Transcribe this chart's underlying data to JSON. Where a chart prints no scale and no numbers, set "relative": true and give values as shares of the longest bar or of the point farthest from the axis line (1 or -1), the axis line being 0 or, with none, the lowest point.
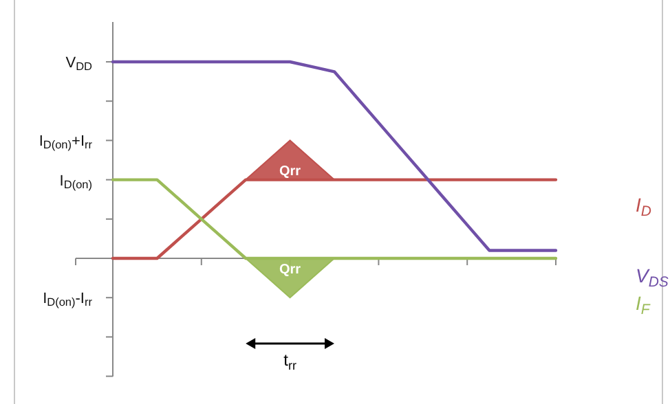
{
  "chart_data": {
    "type": "line",
    "relative": true,
    "categories": [
      null,
      null,
      null,
      null,
      null,
      null,
      null,
      null,
      null,
      null,
      null,
      null,
      null,
      null,
      null,
      null,
      null,
      null,
      null,
      null,
      null
    ],
    "series": [
      {
        "name": "I$_{D}$",
        "color": "#c0504d",
        "values": [
          0,
          0,
          0,
          0.1,
          0.2,
          0.3,
          0.4,
          0.4,
          0.4,
          0.4,
          0.4,
          0.4,
          0.4,
          0.4,
          0.4,
          0.4,
          0.4,
          0.4,
          0.4,
          0.4,
          0.4
        ],
        "lower": [
          null,
          null,
          null,
          null,
          null,
          null,
          0.4,
          0.4,
          0.4,
          0.4,
          0.4,
          null,
          null,
          null,
          null,
          null,
          null,
          null,
          null,
          null,
          null
        ],
        "upper": [
          null,
          null,
          null,
          null,
          null,
          null,
          0.4,
          0.5,
          0.6,
          0.5,
          0.4,
          null,
          null,
          null,
          null,
          null,
          null,
          null,
          null,
          null,
          null
        ]
      },
      {
        "name": "V$_{DS}$",
        "color": "#7050a8",
        "values": [
          1,
          1,
          1,
          1,
          1,
          1,
          1,
          1,
          1,
          0.975,
          0.95,
          0.82,
          0.69,
          0.56,
          0.43,
          0.3,
          0.17,
          0.04,
          0.04,
          0.04,
          0.04
        ]
      },
      {
        "name": "I$_{F}$",
        "color": "#9bbb59",
        "values": [
          0.4,
          0.4,
          0.4,
          0.3,
          0.2,
          0.1,
          0,
          0,
          0,
          0,
          0,
          0,
          0,
          0,
          0,
          0,
          0,
          0,
          0,
          0,
          0
        ],
        "lower": [
          null,
          null,
          null,
          null,
          null,
          null,
          0,
          -0.1,
          -0.2,
          -0.1,
          0,
          null,
          null,
          null,
          null,
          null,
          null,
          null,
          null,
          null,
          null
        ],
        "upper": [
          null,
          null,
          null,
          null,
          null,
          null,
          0,
          0,
          0,
          0,
          0,
          null,
          null,
          null,
          null,
          null,
          null,
          null,
          null,
          null,
          null
        ]
      }
    ],
    "annotations": [
      "Qrr",
      "Qrr",
      "t$_{rr}$",
      "V$_{DD}$",
      "I$_{D(on)}$+I$_{rr}$",
      "I$_{D(on)}$",
      "I$_{D(on)}$-I$_{rr}$"
    ]
  }
}
